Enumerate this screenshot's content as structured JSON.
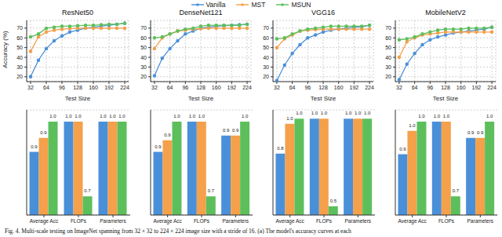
{
  "caption": "Fig. 4.  Multi-scale testing on ImageNet spanning from 32 × 32 to 224 × 224 image size with a stride of 16. (a) The model's accuracy curves at each",
  "chart_data": [
    {
      "type": "line",
      "title": "ResNet50",
      "xlabel": "Test Size",
      "ylabel": "Accuracy (%)",
      "legend": "top",
      "grid": true,
      "marker": "o",
      "x": [
        32,
        48,
        64,
        80,
        96,
        112,
        128,
        144,
        160,
        176,
        192,
        208,
        224
      ],
      "xlim": [
        24,
        232
      ],
      "xticks": [
        32,
        64,
        96,
        128,
        160,
        192,
        224
      ],
      "ylim": [
        15,
        78
      ],
      "yticks": [
        20,
        30,
        40,
        50,
        60,
        70
      ],
      "series": [
        {
          "name": "Vanilla",
          "color": "#4a90d9",
          "values": [
            20,
            37,
            49,
            57,
            62,
            66,
            68,
            70,
            71,
            72,
            73,
            74,
            75
          ]
        },
        {
          "name": "MST",
          "color": "#f5a04a",
          "values": [
            46,
            61,
            66,
            68,
            69,
            69.5,
            70,
            70,
            70,
            70,
            70,
            70,
            70
          ]
        },
        {
          "name": "MSUN",
          "color": "#5cbf5c",
          "values": [
            61,
            64,
            70,
            71,
            72,
            72,
            72.5,
            73,
            73,
            73.5,
            74,
            74,
            75
          ]
        }
      ]
    },
    {
      "type": "line",
      "title": "DenseNet121",
      "xlabel": "Test Size",
      "grid": true,
      "marker": "o",
      "x": [
        32,
        48,
        64,
        80,
        96,
        112,
        128,
        144,
        160,
        176,
        192,
        208,
        224
      ],
      "xlim": [
        24,
        232
      ],
      "xticks": [
        32,
        64,
        96,
        128,
        160,
        192,
        224
      ],
      "ylim": [
        15,
        78
      ],
      "yticks": [
        20,
        30,
        40,
        50,
        60,
        70
      ],
      "series": [
        {
          "name": "Vanilla",
          "color": "#4a90d9",
          "values": [
            21,
            39,
            49,
            57,
            64,
            67,
            70,
            71,
            72,
            72.5,
            73,
            73.5,
            74
          ]
        },
        {
          "name": "MST",
          "color": "#f5a04a",
          "values": [
            49,
            60,
            64,
            67,
            68,
            69,
            69.5,
            70,
            70,
            70,
            70,
            70,
            70
          ]
        },
        {
          "name": "MSUN",
          "color": "#5cbf5c",
          "values": [
            60,
            61,
            64,
            67,
            69,
            70,
            72,
            73,
            73,
            73,
            73,
            73,
            74
          ]
        }
      ]
    },
    {
      "type": "line",
      "title": "VGG16",
      "xlabel": "Test Size",
      "grid": true,
      "marker": "o",
      "x": [
        32,
        48,
        64,
        80,
        96,
        112,
        128,
        144,
        160,
        176,
        192,
        208,
        224
      ],
      "xlim": [
        24,
        232
      ],
      "xticks": [
        32,
        64,
        96,
        128,
        160,
        192,
        224
      ],
      "ylim": [
        15,
        78
      ],
      "yticks": [
        20,
        30,
        40,
        50,
        60,
        70
      ],
      "series": [
        {
          "name": "Vanilla",
          "color": "#4a90d9",
          "values": [
            16,
            32,
            44,
            53,
            60,
            63,
            66,
            68,
            69,
            70,
            71,
            71.5,
            73
          ]
        },
        {
          "name": "MST",
          "color": "#f5a04a",
          "values": [
            50,
            59,
            63,
            67,
            68,
            68.5,
            69,
            69,
            69,
            69,
            69,
            69,
            69
          ]
        },
        {
          "name": "MSUN",
          "color": "#5cbf5c",
          "values": [
            59,
            60,
            64,
            67,
            69,
            70,
            71,
            72,
            72,
            72,
            72,
            72,
            73
          ]
        }
      ]
    },
    {
      "type": "line",
      "title": "MobileNetV2",
      "xlabel": "Test Size",
      "grid": true,
      "marker": "o",
      "x": [
        32,
        48,
        64,
        80,
        96,
        112,
        128,
        144,
        160,
        176,
        192,
        208,
        224
      ],
      "xlim": [
        24,
        232
      ],
      "xticks": [
        32,
        64,
        96,
        128,
        160,
        192,
        224
      ],
      "ylim": [
        15,
        78
      ],
      "yticks": [
        20,
        30,
        40,
        50,
        60,
        70
      ],
      "series": [
        {
          "name": "Vanilla",
          "color": "#4a90d9",
          "values": [
            17,
            33,
            44,
            53,
            58,
            61,
            63,
            65,
            66,
            67,
            68,
            69,
            71
          ]
        },
        {
          "name": "MST",
          "color": "#f5a04a",
          "values": [
            40,
            56,
            60,
            63,
            64,
            65,
            66,
            66,
            66,
            66,
            66,
            66,
            66
          ]
        },
        {
          "name": "MSUN",
          "color": "#5cbf5c",
          "values": [
            58,
            59,
            61,
            64,
            66,
            68,
            69,
            69,
            69,
            70,
            70,
            70,
            71
          ]
        }
      ]
    },
    {
      "type": "bar",
      "categories": [
        "Average Acc",
        "FLOPs",
        "Parameters"
      ],
      "grid": true,
      "data_labels": true,
      "tick_labels": "x",
      "ylim": [
        0.6,
        1.05
      ],
      "yticks": [
        0.6,
        0.7,
        0.8,
        0.9,
        1.0
      ],
      "series": [
        {
          "name": "Vanilla",
          "color": "#4a90d9",
          "values": [
            0.87,
            1.0,
            1.0
          ],
          "value_labels": [
            "0.9",
            "1.0",
            "1.0"
          ]
        },
        {
          "name": "MST",
          "color": "#f5a04a",
          "values": [
            0.93,
            1.0,
            1.0
          ],
          "value_labels": [
            "0.9",
            "1.0",
            "1.0"
          ]
        },
        {
          "name": "MSUN",
          "color": "#5cbf5c",
          "values": [
            1.0,
            0.68,
            1.0
          ],
          "value_labels": [
            "1.0",
            "0.7",
            "1.0"
          ]
        }
      ]
    },
    {
      "type": "bar",
      "categories": [
        "Average Acc",
        "FLOPs",
        "Parameters"
      ],
      "grid": true,
      "data_labels": true,
      "tick_labels": "x",
      "ylim": [
        0.6,
        1.05
      ],
      "yticks": [
        0.6,
        0.7,
        0.8,
        0.9,
        1.0
      ],
      "series": [
        {
          "name": "Vanilla",
          "color": "#4a90d9",
          "values": [
            0.87,
            1.0,
            0.94
          ],
          "value_labels": [
            "0.9",
            "1.0",
            "0.9"
          ]
        },
        {
          "name": "MST",
          "color": "#f5a04a",
          "values": [
            0.92,
            1.0,
            0.94
          ],
          "value_labels": [
            "0.9",
            "1.0",
            "0.9"
          ]
        },
        {
          "name": "MSUN",
          "color": "#5cbf5c",
          "values": [
            1.0,
            0.68,
            1.0
          ],
          "value_labels": [
            "1.0",
            "0.7",
            "1.0"
          ]
        }
      ]
    },
    {
      "type": "bar",
      "categories": [
        "Average Acc",
        "FLOPs",
        "Parameters"
      ],
      "grid": true,
      "data_labels": true,
      "tick_labels": "x",
      "ylim": [
        0.45,
        1.05
      ],
      "yticks": [
        0.5,
        0.6,
        0.7,
        0.8,
        0.9,
        1.0
      ],
      "series": [
        {
          "name": "Vanilla",
          "color": "#4a90d9",
          "values": [
            0.8,
            1.0,
            1.0
          ],
          "value_labels": [
            "0.8",
            "1.0",
            "1.0"
          ]
        },
        {
          "name": "MST",
          "color": "#f5a04a",
          "values": [
            0.97,
            1.0,
            1.0
          ],
          "value_labels": [
            "1.0",
            "1.0",
            "1.0"
          ]
        },
        {
          "name": "MSUN",
          "color": "#5cbf5c",
          "values": [
            1.0,
            0.5,
            1.0
          ],
          "value_labels": [
            "1.0",
            "0.5",
            "1.0"
          ]
        }
      ]
    },
    {
      "type": "bar",
      "categories": [
        "Average Acc",
        "FLOPs",
        "Parameters"
      ],
      "grid": true,
      "data_labels": true,
      "tick_labels": "x",
      "ylim": [
        0.6,
        1.05
      ],
      "yticks": [
        0.6,
        0.7,
        0.8,
        0.9,
        1.0
      ],
      "series": [
        {
          "name": "Vanilla",
          "color": "#4a90d9",
          "values": [
            0.86,
            1.0,
            0.93
          ],
          "value_labels": [
            "0.9",
            "1.0",
            "0.9"
          ]
        },
        {
          "name": "MST",
          "color": "#f5a04a",
          "values": [
            0.96,
            1.0,
            0.93
          ],
          "value_labels": [
            "1.0",
            "1.0",
            "0.9"
          ]
        },
        {
          "name": "MSUN",
          "color": "#5cbf5c",
          "values": [
            1.0,
            0.68,
            1.0
          ],
          "value_labels": [
            "1.0",
            "0.7",
            "1.0"
          ]
        }
      ]
    }
  ]
}
